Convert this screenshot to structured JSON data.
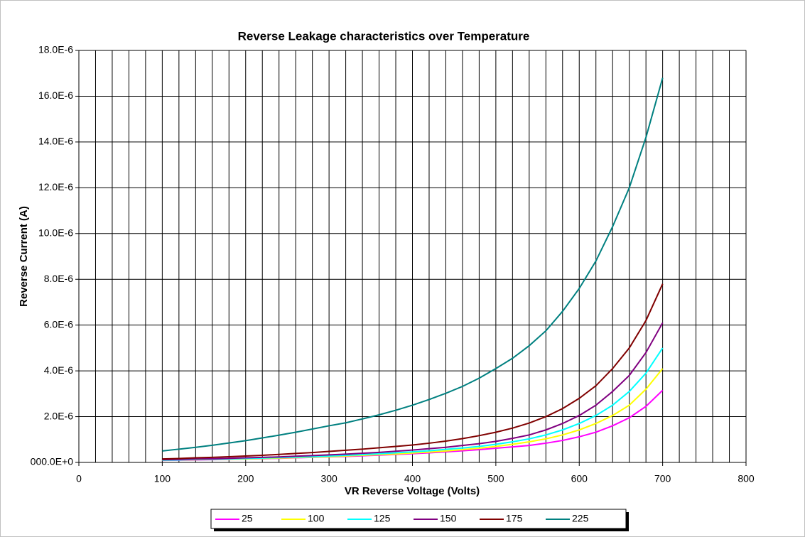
{
  "chart_data": {
    "type": "line",
    "title": "Reverse Leakage characteristics over Temperature",
    "x_label": "VR Reverse Voltage (Volts)",
    "y_label": "Reverse Current (A)",
    "x": [
      100,
      120,
      140,
      160,
      180,
      200,
      220,
      240,
      260,
      280,
      300,
      320,
      340,
      360,
      380,
      400,
      420,
      440,
      460,
      480,
      500,
      520,
      540,
      560,
      580,
      600,
      620,
      640,
      660,
      680,
      700
    ],
    "series": [
      {
        "name": "25",
        "color": "#ff00ff",
        "values": [
          9e-08,
          1e-07,
          1.1e-07,
          1.2e-07,
          1.3e-07,
          1.5e-07,
          1.6e-07,
          1.8e-07,
          2e-07,
          2.2e-07,
          2.4e-07,
          2.6e-07,
          2.9e-07,
          3.2e-07,
          3.5e-07,
          3.8e-07,
          4.2e-07,
          4.6e-07,
          5.1e-07,
          5.6e-07,
          6.2e-07,
          6.8e-07,
          7.4e-07,
          8.4e-07,
          9.6e-07,
          1.12e-06,
          1.32e-06,
          1.6e-06,
          1.95e-06,
          2.45e-06,
          3.15e-06
        ]
      },
      {
        "name": "100",
        "color": "#ffff00",
        "values": [
          1e-07,
          1.1e-07,
          1.2e-07,
          1.3e-07,
          1.4e-07,
          1.5e-07,
          1.7e-07,
          1.9e-07,
          2.1e-07,
          2.3e-07,
          2.5e-07,
          2.8e-07,
          3.1e-07,
          3.4e-07,
          3.7e-07,
          4.1e-07,
          4.5e-07,
          5e-07,
          5.6e-07,
          6.2e-07,
          7e-07,
          7.9e-07,
          9e-07,
          1.03e-06,
          1.2e-06,
          1.42e-06,
          1.7e-06,
          2.05e-06,
          2.5e-06,
          3.2e-06,
          4.1e-06
        ]
      },
      {
        "name": "125",
        "color": "#00ffff",
        "values": [
          1e-07,
          1.1e-07,
          1.3e-07,
          1.4e-07,
          1.5e-07,
          1.7e-07,
          1.9e-07,
          2.1e-07,
          2.3e-07,
          2.5e-07,
          2.8e-07,
          3.1e-07,
          3.4e-07,
          3.8e-07,
          4.2e-07,
          4.6e-07,
          5.1e-07,
          5.7e-07,
          6.3e-07,
          7e-07,
          7.9e-07,
          9e-07,
          1.03e-06,
          1.2e-06,
          1.42e-06,
          1.7e-06,
          2.05e-06,
          2.5e-06,
          3.1e-06,
          3.9e-06,
          5e-06
        ]
      },
      {
        "name": "150",
        "color": "#800080",
        "values": [
          1.2e-07,
          1.3e-07,
          1.5e-07,
          1.6e-07,
          1.8e-07,
          2e-07,
          2.2e-07,
          2.4e-07,
          2.7e-07,
          3e-07,
          3.3e-07,
          3.6e-07,
          4e-07,
          4.4e-07,
          4.9e-07,
          5.4e-07,
          6e-07,
          6.6e-07,
          7.4e-07,
          8.2e-07,
          9.2e-07,
          1.05e-06,
          1.2e-06,
          1.42e-06,
          1.7e-06,
          2.05e-06,
          2.5e-06,
          3.1e-06,
          3.8e-06,
          4.8e-06,
          6.1e-06
        ]
      },
      {
        "name": "175",
        "color": "#800000",
        "values": [
          1.5e-07,
          1.7e-07,
          2e-07,
          2.2e-07,
          2.5e-07,
          2.8e-07,
          3.1e-07,
          3.5e-07,
          3.9e-07,
          4.3e-07,
          4.8e-07,
          5.3e-07,
          5.8e-07,
          6.4e-07,
          7e-07,
          7.6e-07,
          8.4e-07,
          9.3e-07,
          1.04e-06,
          1.17e-06,
          1.32e-06,
          1.5e-06,
          1.72e-06,
          2e-06,
          2.35e-06,
          2.8e-06,
          3.35e-06,
          4.1e-06,
          5e-06,
          6.2e-06,
          7.8e-06
        ]
      },
      {
        "name": "225",
        "color": "#008080",
        "values": [
          5e-07,
          5.8e-07,
          6.6e-07,
          7.5e-07,
          8.5e-07,
          9.5e-07,
          1.07e-06,
          1.19e-06,
          1.32e-06,
          1.46e-06,
          1.6e-06,
          1.73e-06,
          1.9e-06,
          2.08e-06,
          2.28e-06,
          2.5e-06,
          2.75e-06,
          3.02e-06,
          3.32e-06,
          3.68e-06,
          4.1e-06,
          4.55e-06,
          5.1e-06,
          5.75e-06,
          6.6e-06,
          7.6e-06,
          8.8e-06,
          1.03e-05,
          1.2e-05,
          1.42e-05,
          1.68e-05
        ]
      }
    ],
    "xlim": [
      0,
      800
    ],
    "xticks": [
      0,
      100,
      200,
      300,
      400,
      500,
      600,
      700,
      800
    ],
    "x_grid": [
      0,
      20,
      40,
      60,
      80,
      100,
      120,
      140,
      160,
      180,
      200,
      220,
      240,
      260,
      280,
      300,
      320,
      340,
      360,
      380,
      400,
      420,
      440,
      460,
      480,
      500,
      520,
      540,
      560,
      580,
      600,
      620,
      640,
      660,
      680,
      700,
      720,
      740,
      760,
      780,
      800
    ],
    "ylim": [
      0,
      1.8e-05
    ],
    "yticks": [
      {
        "value": 0,
        "label": "000.0E+0"
      },
      {
        "value": 2e-06,
        "label": "2.0E-6"
      },
      {
        "value": 4e-06,
        "label": "4.0E-6"
      },
      {
        "value": 6e-06,
        "label": "6.0E-6"
      },
      {
        "value": 8e-06,
        "label": "8.0E-6"
      },
      {
        "value": 1e-05,
        "label": "10.0E-6"
      },
      {
        "value": 1.2e-05,
        "label": "12.0E-6"
      },
      {
        "value": 1.4e-05,
        "label": "14.0E-6"
      },
      {
        "value": 1.6e-05,
        "label": "16.0E-6"
      },
      {
        "value": 1.8e-05,
        "label": "18.0E-6"
      }
    ],
    "grid": true,
    "legend": "bottom"
  }
}
